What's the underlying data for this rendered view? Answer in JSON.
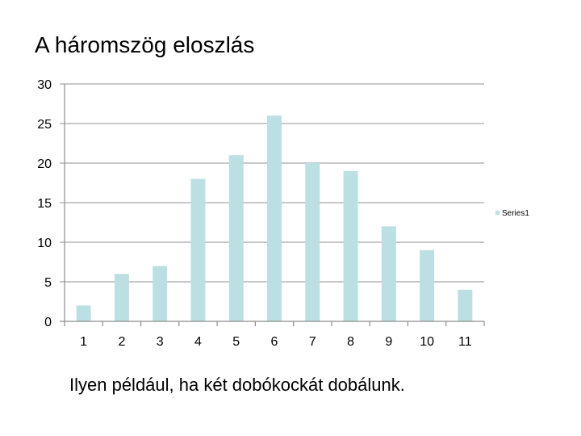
{
  "slide": {
    "title": "A háromszög eloszlás",
    "caption": "Ilyen például, ha két dobókockát dobálunk."
  },
  "chart_data": {
    "type": "bar",
    "categories": [
      "1",
      "2",
      "3",
      "4",
      "5",
      "6",
      "7",
      "8",
      "9",
      "10",
      "11"
    ],
    "series": [
      {
        "name": "Series1",
        "values": [
          2,
          6,
          7,
          18,
          21,
          26,
          20,
          19,
          12,
          9,
          4
        ]
      }
    ],
    "ylim": [
      0,
      30
    ],
    "yticks": [
      0,
      5,
      10,
      15,
      20,
      25,
      30
    ],
    "grid": true,
    "legend": "right",
    "colors": {
      "bar": "#bcdfe3",
      "grid": "#a6a6a6",
      "axis": "#8c8c8c"
    }
  }
}
